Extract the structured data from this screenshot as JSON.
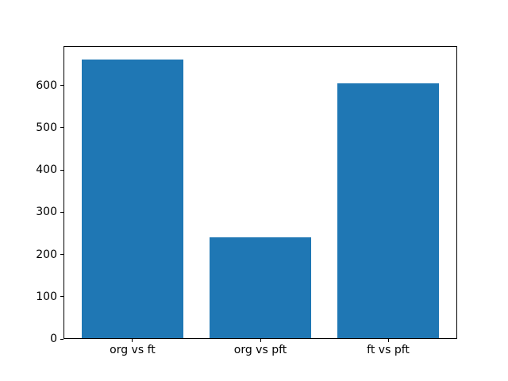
{
  "chart_data": {
    "type": "bar",
    "categories": [
      "org vs ft",
      "org vs pft",
      "ft vs pft"
    ],
    "values": [
      660,
      239,
      603
    ],
    "bar_color": "#1f77b4",
    "yticks": [
      0,
      100,
      200,
      300,
      400,
      500,
      600
    ],
    "ylim": [
      0,
      693
    ],
    "xlim": [
      -0.54,
      2.54
    ],
    "bar_width_units": 0.8,
    "grid": false,
    "legend": "none",
    "title": "",
    "xlabel": "",
    "ylabel": ""
  },
  "figure": {
    "background": "#ffffff",
    "spine_color": "#000000",
    "tick_color": "#000000",
    "label_color": "#000000"
  }
}
